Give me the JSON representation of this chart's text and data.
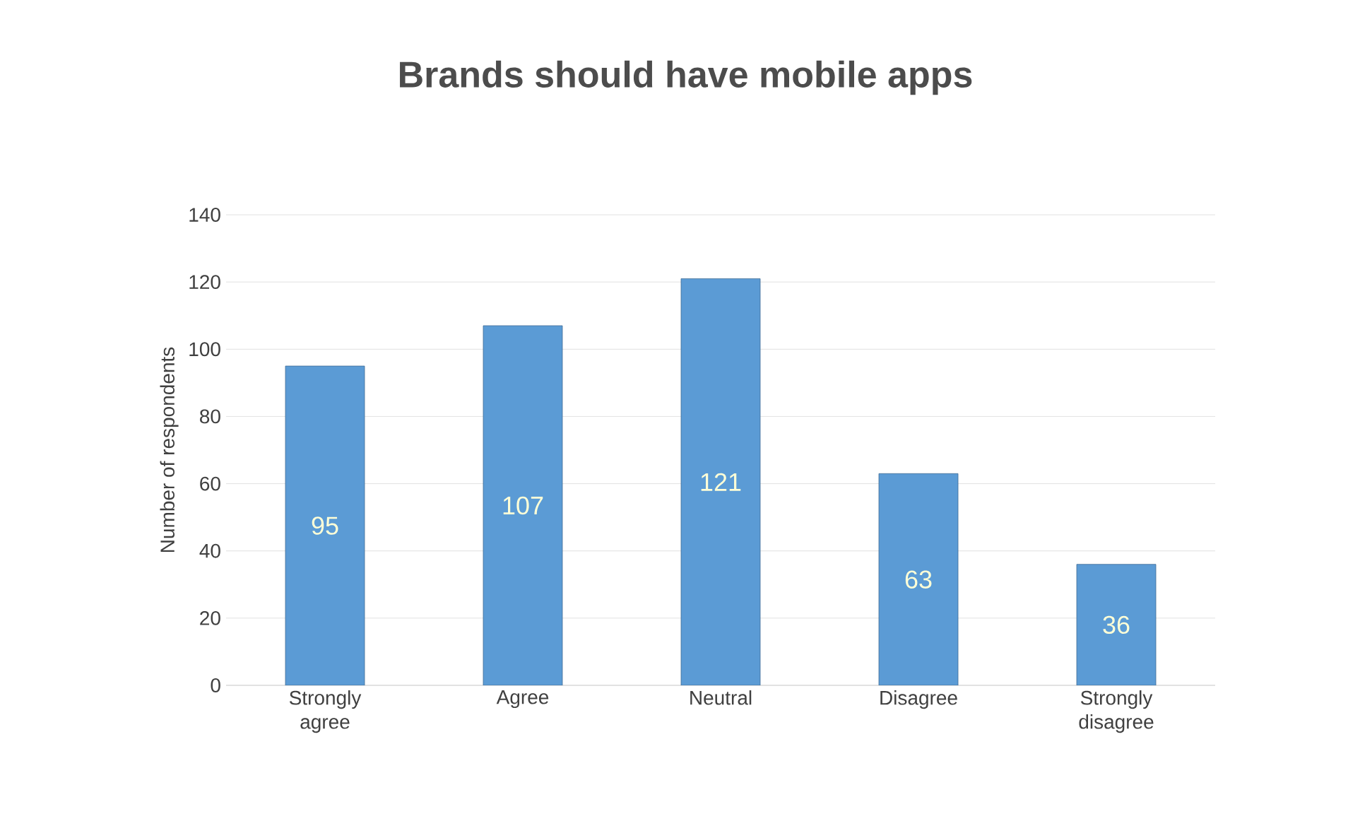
{
  "chart_data": {
    "type": "bar",
    "title": "Brands should have mobile apps",
    "ylabel": "Number of respondents",
    "categories": [
      "Strongly\nagree",
      "Agree",
      "Neutral",
      "Disagree",
      "Strongly\ndisagree"
    ],
    "values": [
      95,
      107,
      121,
      63,
      36
    ],
    "color": "#5b9bd5",
    "ylim": [
      0,
      140
    ],
    "yticks": [
      0,
      20,
      40,
      60,
      80,
      100,
      120,
      140
    ],
    "grid": "y",
    "data_labels": true
  }
}
